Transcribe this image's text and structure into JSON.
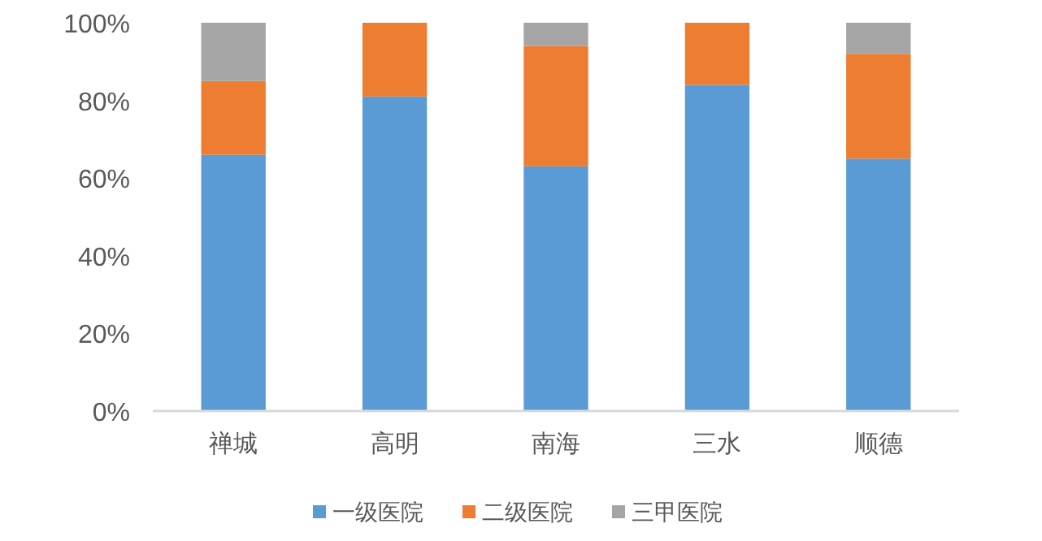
{
  "chart_data": {
    "type": "bar",
    "stacked": true,
    "categories": [
      "禅城",
      "高明",
      "南海",
      "三水",
      "顺德"
    ],
    "series": [
      {
        "name": "一级医院",
        "color": "#5b9bd5",
        "values": [
          66,
          81,
          63,
          84,
          65
        ]
      },
      {
        "name": "二级医院",
        "color": "#ed7d31",
        "values": [
          19,
          19,
          31,
          16,
          27
        ]
      },
      {
        "name": "三甲医院",
        "color": "#a5a5a5",
        "values": [
          15,
          0,
          6,
          0,
          8
        ]
      }
    ],
    "ylim": [
      0,
      100
    ],
    "yticks": [
      {
        "value": 0,
        "label": "0%"
      },
      {
        "value": 20,
        "label": "20%"
      },
      {
        "value": 40,
        "label": "40%"
      },
      {
        "value": 60,
        "label": "60%"
      },
      {
        "value": 80,
        "label": "80%"
      },
      {
        "value": 100,
        "label": "100%"
      }
    ],
    "grid": false,
    "legend": "bottom"
  }
}
